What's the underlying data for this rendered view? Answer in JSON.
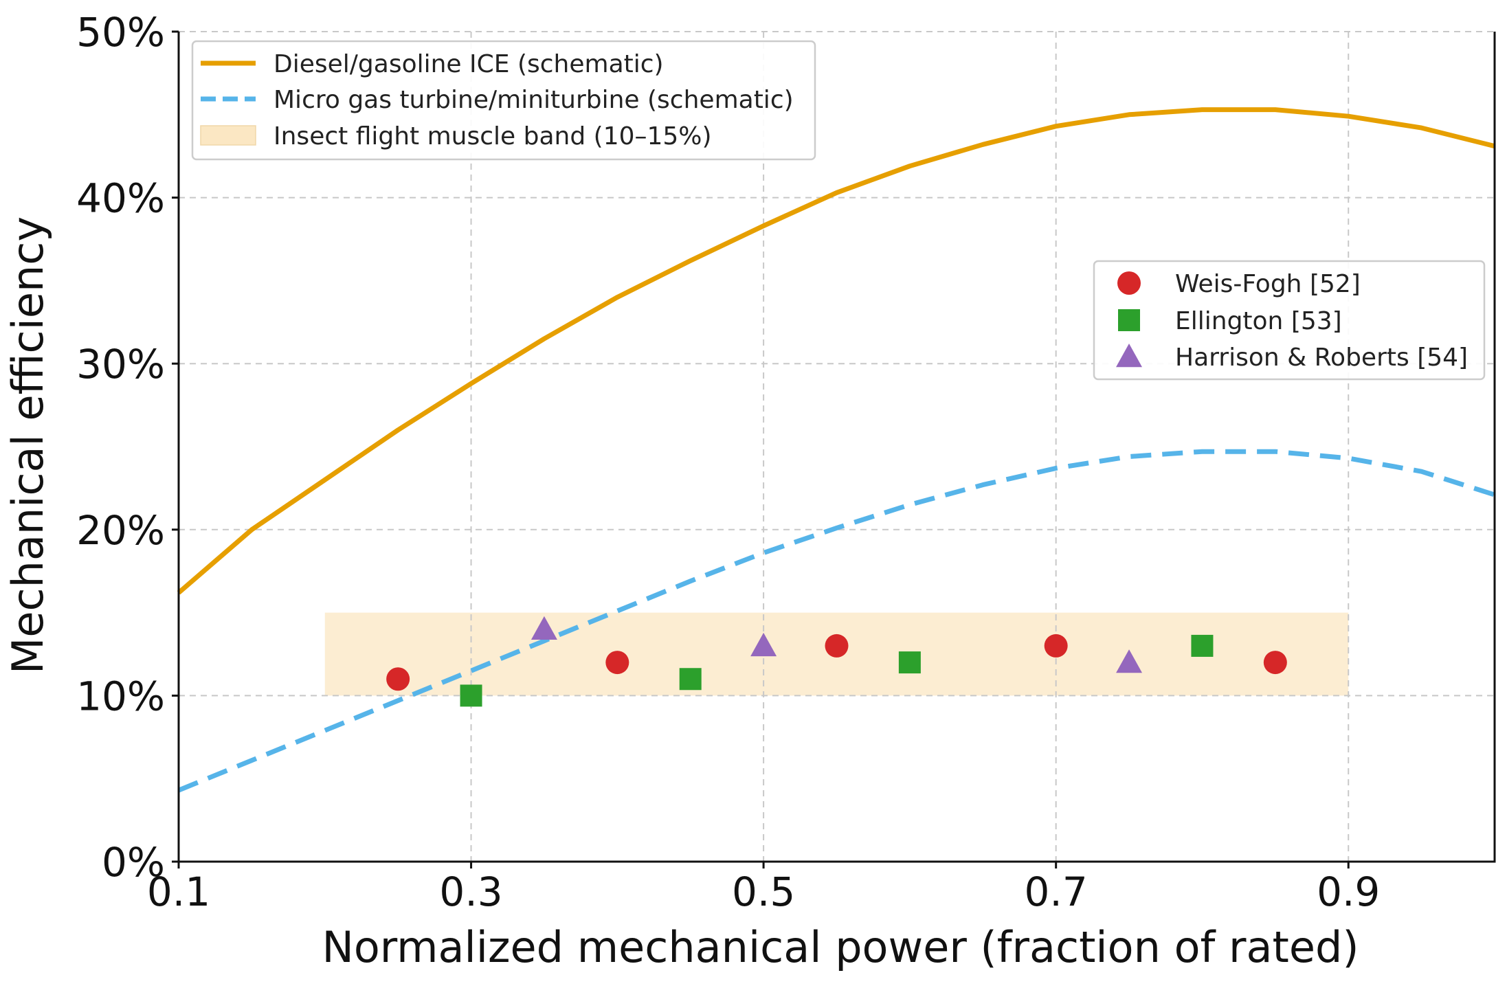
{
  "chart_data": {
    "type": "line",
    "title": "",
    "xlabel": "Normalized mechanical power (fraction of rated)",
    "ylabel": "Mechanical efficiency",
    "xlim": [
      0.1,
      1.0
    ],
    "ylim": [
      0,
      50
    ],
    "grid": true,
    "x_ticks": [
      {
        "value": 0.1,
        "label": "0.1"
      },
      {
        "value": 0.3,
        "label": "0.3"
      },
      {
        "value": 0.5,
        "label": "0.5"
      },
      {
        "value": 0.7,
        "label": "0.7"
      },
      {
        "value": 0.9,
        "label": "0.9"
      }
    ],
    "y_ticks": [
      {
        "value": 0,
        "label": "0%"
      },
      {
        "value": 10,
        "label": "10%"
      },
      {
        "value": 20,
        "label": "20%"
      },
      {
        "value": 30,
        "label": "30%"
      },
      {
        "value": 40,
        "label": "40%"
      },
      {
        "value": 50,
        "label": "50%"
      }
    ],
    "band": {
      "name": "Insect flight muscle band (10–15%)",
      "x_range": [
        0.2,
        0.9
      ],
      "y_range": [
        10,
        15
      ],
      "color": "#fbe7c3"
    },
    "series": [
      {
        "name": "Diesel/gasoline ICE (schematic)",
        "style": "solid",
        "color": "#e69f00",
        "x": [
          0.1,
          0.15,
          0.2,
          0.25,
          0.3,
          0.35,
          0.4,
          0.45,
          0.5,
          0.55,
          0.6,
          0.65,
          0.7,
          0.75,
          0.8,
          0.85,
          0.9,
          0.95,
          1.0
        ],
        "y": [
          16.2,
          20.0,
          23.0,
          26.0,
          28.8,
          31.5,
          34.0,
          36.2,
          38.3,
          40.3,
          41.9,
          43.2,
          44.3,
          45.0,
          45.3,
          45.3,
          44.9,
          44.2,
          43.1
        ]
      },
      {
        "name": "Micro gas turbine/miniturbine (schematic)",
        "style": "dashed",
        "color": "#56b4e9",
        "x": [
          0.1,
          0.15,
          0.2,
          0.25,
          0.3,
          0.35,
          0.4,
          0.45,
          0.5,
          0.55,
          0.6,
          0.65,
          0.7,
          0.75,
          0.8,
          0.85,
          0.9,
          0.95,
          1.0
        ],
        "y": [
          4.3,
          6.1,
          7.9,
          9.7,
          11.5,
          13.3,
          15.1,
          16.9,
          18.6,
          20.1,
          21.5,
          22.7,
          23.7,
          24.4,
          24.7,
          24.7,
          24.3,
          23.5,
          22.1
        ]
      }
    ],
    "scatter_series": [
      {
        "name": "Weis-Fogh [52]",
        "marker": "circle",
        "color": "#d62728",
        "x": [
          0.25,
          0.4,
          0.55,
          0.7,
          0.85
        ],
        "y": [
          11,
          12,
          13,
          13,
          12
        ]
      },
      {
        "name": "Ellington [53]",
        "marker": "square",
        "color": "#2ca02c",
        "x": [
          0.3,
          0.45,
          0.6,
          0.8
        ],
        "y": [
          10,
          11,
          12,
          13
        ]
      },
      {
        "name": "Harrison & Roberts [54]",
        "marker": "triangle",
        "color": "#9467bd",
        "x": [
          0.35,
          0.5,
          0.75
        ],
        "y": [
          14,
          13,
          12
        ]
      }
    ],
    "legends": [
      {
        "placement": "top-left",
        "entries": [
          "Diesel/gasoline ICE (schematic)",
          "Micro gas turbine/miniturbine (schematic)",
          "Insect flight muscle band (10–15%)"
        ]
      },
      {
        "placement": "center-right",
        "entries": [
          "Weis-Fogh [52]",
          "Ellington [53]",
          "Harrison & Roberts [54]"
        ]
      }
    ]
  }
}
